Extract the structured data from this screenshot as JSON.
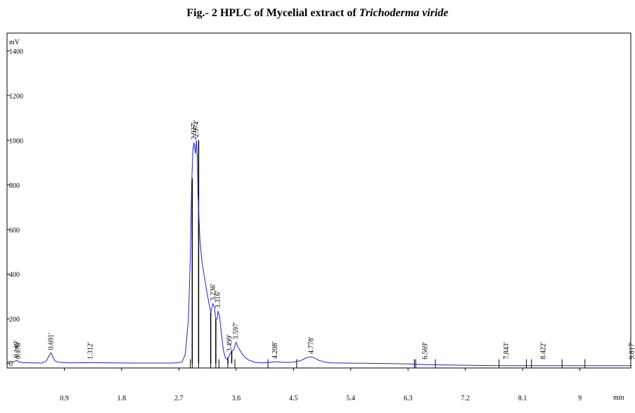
{
  "figure": {
    "title_prefix": "Fig.- 2 HPLC of Mycelial extract of ",
    "title_species": "Trichoderma viride"
  },
  "chart_data": {
    "type": "line",
    "title": "Fig.- 2 HPLC of Mycelial extract of Trichoderma viride",
    "ylabel": "mV",
    "xlabel": "min",
    "xlim": [
      0,
      9.8
    ],
    "ylim": [
      -20,
      1480
    ],
    "x_ticks": [
      "0.9",
      "1.8",
      "2.7",
      "3.6",
      "4.5",
      "5.4",
      "6.3",
      "7.2",
      "8.1",
      "9"
    ],
    "y_ticks": [
      "1400",
      "1200",
      "1000",
      "800",
      "600",
      "400",
      "200",
      "0"
    ],
    "grid": false,
    "line_color": "#2222cc",
    "series": [
      {
        "x": [
          0,
          0.05,
          0.1,
          0.149,
          0.178,
          0.25,
          0.4,
          0.55,
          0.62,
          0.66,
          0.691,
          0.72,
          0.75,
          0.8,
          0.9,
          1.0,
          1.312,
          1.6,
          2.0,
          2.4,
          2.6,
          2.7,
          2.75,
          2.8,
          2.85,
          2.88,
          2.9,
          2.92,
          2.937,
          2.95,
          2.96,
          2.974,
          2.99,
          3.0,
          3.03,
          3.06,
          3.1,
          3.14,
          3.18,
          3.2,
          3.236,
          3.26,
          3.28,
          3.3,
          3.316,
          3.34,
          3.37,
          3.4,
          3.43,
          3.46,
          3.499,
          3.53,
          3.56,
          3.597,
          3.62,
          3.66,
          3.7,
          3.75,
          3.8,
          3.85,
          3.9,
          4.0,
          4.1,
          4.15,
          4.208,
          4.3,
          4.4,
          4.5,
          4.6,
          4.65,
          4.7,
          4.778,
          4.85,
          4.9,
          5.0,
          5.1,
          5.3,
          5.6,
          6.0,
          6.3,
          6.569,
          7.0,
          7.5,
          7.843,
          8.0,
          8.422,
          8.8,
          9.2,
          9.6,
          9.817
        ],
        "y": [
          5,
          10,
          6,
          14,
          8,
          4,
          3,
          2,
          12,
          35,
          48,
          30,
          12,
          6,
          4,
          3,
          4,
          3,
          2,
          2,
          2,
          4,
          8,
          40,
          200,
          480,
          800,
          960,
          990,
          960,
          940,
          1000,
          920,
          760,
          560,
          460,
          390,
          320,
          260,
          230,
          268,
          250,
          200,
          200,
          235,
          210,
          130,
          60,
          25,
          18,
          40,
          55,
          60,
          95,
          80,
          58,
          40,
          25,
          15,
          10,
          5,
          3,
          4,
          6,
          8,
          6,
          5,
          6,
          12,
          18,
          25,
          30,
          22,
          14,
          6,
          3,
          2,
          1,
          0,
          -2,
          -5,
          -7,
          -9,
          -10,
          -10,
          -10,
          -10,
          -10,
          -10,
          -10
        ]
      }
    ],
    "peaks": [
      {
        "time": 0.149,
        "label": "0.149'"
      },
      {
        "time": 0.178,
        "label": "0.178'"
      },
      {
        "time": 0.691,
        "label": "0.691'"
      },
      {
        "time": 1.312,
        "label": "1.312'"
      },
      {
        "time": 2.937,
        "label": "2.937'"
      },
      {
        "time": 2.974,
        "label": "2.974'"
      },
      {
        "time": 3.236,
        "label": "3.236'"
      },
      {
        "time": 3.316,
        "label": "3.316'"
      },
      {
        "time": 3.499,
        "label": "3.499'"
      },
      {
        "time": 3.597,
        "label": "3.597'"
      },
      {
        "time": 4.208,
        "label": "4.208'"
      },
      {
        "time": 4.778,
        "label": "4.778'"
      },
      {
        "time": 6.569,
        "label": "6.569'"
      },
      {
        "time": 7.843,
        "label": "7.843'"
      },
      {
        "time": 8.422,
        "label": "8.422'"
      },
      {
        "time": 9.817,
        "label": "9.817'"
      }
    ],
    "integration_marks": [
      2.88,
      2.91,
      3.01,
      3.2,
      3.28,
      3.33,
      3.47,
      3.58,
      4.1,
      4.55,
      6.4,
      6.42,
      6.73,
      7.73,
      8.16,
      8.24,
      8.72,
      9.08,
      9.8
    ],
    "tall_drops": [
      {
        "time": 2.91,
        "level": 830
      },
      {
        "time": 3.01,
        "level": 1000
      },
      {
        "time": 3.2,
        "level": 230
      },
      {
        "time": 3.28,
        "level": 200
      },
      {
        "time": 3.47,
        "level": 28
      },
      {
        "time": 3.53,
        "level": 55
      }
    ]
  }
}
